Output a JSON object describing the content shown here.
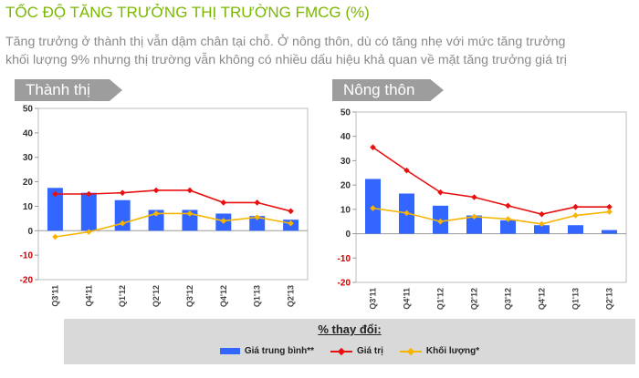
{
  "header": {
    "title": "TỐC ĐỘ TĂNG TRƯỞNG THỊ TRƯỜNG FMCG (%)",
    "subtitle_line1": "Tăng trưởng ở thành thị vẫn dậm chân tại chỗ. Ở nông thôn, dù có tăng nhẹ với mức tăng trưởng",
    "subtitle_line2": "khối lượng 9% nhưng thị trường vẫn không có nhiều dấu hiệu khả quan về mặt tăng trưởng giá trị"
  },
  "legend": {
    "title": "% thay đổi:",
    "items": [
      "Giá trung bình**",
      "Giá trị",
      "Khối lượng*"
    ]
  },
  "colors": {
    "bar": "#3366ff",
    "value_line": "#e81010",
    "volume_line": "#f7b500"
  },
  "chart_data": [
    {
      "type": "bar",
      "title": "Thành thị",
      "categories": [
        "Q3'11",
        "Q4'11",
        "Q1'12",
        "Q2'12",
        "Q3'12",
        "Q4'12",
        "Q1'13",
        "Q2'13"
      ],
      "ylim": [
        -20,
        50
      ],
      "yticks": [
        -20,
        -10,
        0,
        10,
        20,
        30,
        40,
        50
      ],
      "series": [
        {
          "name": "Giá trung bình**",
          "type": "bar",
          "values": [
            17.5,
            15.5,
            12.5,
            8.5,
            8.5,
            7,
            6,
            4.5
          ]
        },
        {
          "name": "Giá trị",
          "type": "line",
          "values": [
            15,
            15,
            15.5,
            16.5,
            16.5,
            11.5,
            11.5,
            8
          ]
        },
        {
          "name": "Khối lượng*",
          "type": "line",
          "values": [
            -2.5,
            -0.5,
            3,
            7,
            7,
            4,
            5.5,
            3
          ]
        }
      ]
    },
    {
      "type": "bar",
      "title": "Nông thôn",
      "categories": [
        "Q3'11",
        "Q4'11",
        "Q1'12",
        "Q2'12",
        "Q3'12",
        "Q4'12",
        "Q1'13",
        "Q2'13"
      ],
      "ylim": [
        -20,
        50
      ],
      "yticks": [
        -20,
        -10,
        0,
        10,
        20,
        30,
        40,
        50
      ],
      "series": [
        {
          "name": "Giá trung bình**",
          "type": "bar",
          "values": [
            22.5,
            16.5,
            11.5,
            7.5,
            5.5,
            3.5,
            3.5,
            1.5
          ]
        },
        {
          "name": "Giá trị",
          "type": "line",
          "values": [
            35.5,
            26,
            17,
            15,
            11.5,
            8,
            11,
            11
          ]
        },
        {
          "name": "Khối lượng*",
          "type": "line",
          "values": [
            10.5,
            8.5,
            5,
            7,
            6,
            4,
            7.5,
            9
          ]
        }
      ]
    }
  ]
}
